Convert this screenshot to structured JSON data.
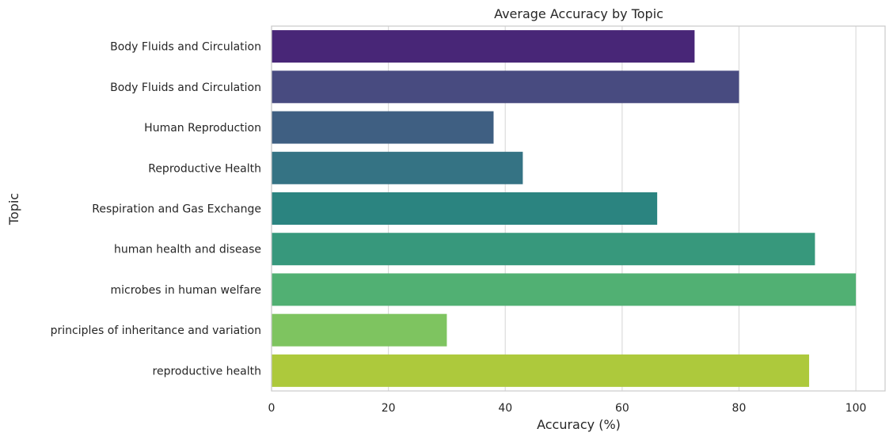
{
  "chart_data": {
    "type": "bar",
    "orientation": "horizontal",
    "title": "Average Accuracy by Topic",
    "xlabel": "Accuracy (%)",
    "ylabel": "Topic",
    "xlim": [
      0,
      105
    ],
    "xticks": [
      0,
      20,
      40,
      60,
      80,
      100
    ],
    "grid": "vertical",
    "legend": "none",
    "categories": [
      "Body Fluids and Circulation",
      "Body Fluids and Circulation ",
      "Human Reproduction",
      "Reproductive Health",
      "Respiration and Gas Exchange",
      "human health and disease ",
      "microbes in human welfare",
      "principles of inheritance and variation ",
      "reproductive health "
    ],
    "values": [
      72.4,
      80,
      38,
      43,
      66,
      93,
      100,
      30,
      92
    ],
    "colors": [
      "#482677",
      "#484b80",
      "#3f5f82",
      "#357384",
      "#2b8480",
      "#37987c",
      "#51b073",
      "#7ec460",
      "#adc93c"
    ]
  }
}
